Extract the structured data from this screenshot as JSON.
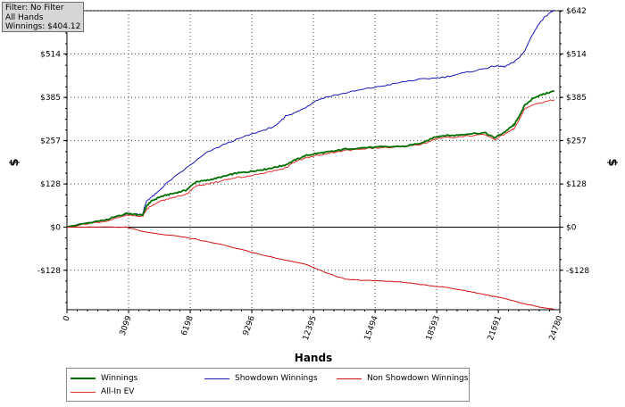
{
  "info_box": {
    "filter": "Filter: No Filter",
    "hands": "All Hands",
    "winnings": "Winnings: $404.12"
  },
  "chart_data": {
    "type": "line",
    "xlabel": "Hands",
    "ylabel_left": "$",
    "ylabel_right": "$",
    "xlim": [
      0,
      24780
    ],
    "ylim": [
      -245,
      642
    ],
    "x_ticks": [
      0,
      3099,
      6198,
      9296,
      12395,
      15494,
      18593,
      21691,
      24780
    ],
    "x_tick_labels": [
      "0",
      "3099",
      "6198",
      "9296",
      "12395",
      "15494",
      "18593",
      "21691",
      "24780"
    ],
    "y_ticks": [
      -128,
      0,
      128,
      257,
      385,
      514,
      642
    ],
    "y_tick_labels": [
      "-$128",
      "$0",
      "$128",
      "$257",
      "$385",
      "$514",
      "$642"
    ],
    "grid": true,
    "legend_position": "bottom",
    "series": [
      {
        "name": "Winnings",
        "color": "#007000",
        "x": [
          0,
          1000,
          2000,
          3000,
          3800,
          4000,
          4200,
          4600,
          5000,
          5500,
          6000,
          6500,
          7000,
          7500,
          8000,
          8500,
          9000,
          9500,
          10000,
          10500,
          11000,
          11500,
          12000,
          12500,
          13000,
          13500,
          14000,
          15000,
          16000,
          17000,
          18000,
          18500,
          19000,
          19500,
          20000,
          21000,
          21500,
          22000,
          22400,
          22500,
          22700,
          23000,
          23500,
          24000,
          24500
        ],
        "y": [
          0,
          12,
          22,
          40,
          36,
          62,
          75,
          88,
          95,
          102,
          110,
          135,
          138,
          145,
          152,
          160,
          163,
          168,
          172,
          178,
          185,
          200,
          212,
          218,
          222,
          226,
          232,
          236,
          238,
          240,
          252,
          268,
          272,
          272,
          276,
          280,
          265,
          282,
          300,
          305,
          325,
          360,
          385,
          395,
          404
        ]
      },
      {
        "name": "Showdown Winnings",
        "color": "#1818b8",
        "x": [
          0,
          1000,
          2000,
          3000,
          3800,
          4000,
          4500,
          5000,
          6000,
          7000,
          8000,
          9000,
          10000,
          10500,
          11000,
          11500,
          12000,
          12500,
          13000,
          14000,
          15000,
          16000,
          17000,
          18000,
          19000,
          20000,
          21000,
          21500,
          22000,
          22500,
          23000,
          23300,
          23800,
          24300,
          24500
        ],
        "y": [
          0,
          12,
          22,
          40,
          38,
          78,
          100,
          130,
          175,
          220,
          248,
          270,
          290,
          300,
          330,
          340,
          355,
          375,
          385,
          398,
          410,
          420,
          432,
          440,
          445,
          458,
          470,
          478,
          476,
          490,
          520,
          560,
          610,
          638,
          642
        ]
      },
      {
        "name": "Non Showdown Winnings",
        "color": "#d01010",
        "x": [
          0,
          3000,
          4000,
          6000,
          8000,
          10000,
          12000,
          13000,
          14000,
          15000,
          16000,
          17000,
          18000,
          19000,
          20000,
          21000,
          22000,
          23000,
          24000,
          24500
        ],
        "y": [
          0,
          0,
          -15,
          -30,
          -55,
          -85,
          -110,
          -135,
          -155,
          -158,
          -160,
          -164,
          -172,
          -178,
          -188,
          -200,
          -212,
          -228,
          -240,
          -244
        ]
      },
      {
        "name": "All-In EV",
        "color": "#e03030",
        "x": [
          0,
          1000,
          2000,
          3000,
          3800,
          4000,
          4200,
          4600,
          5000,
          5500,
          6000,
          6500,
          7000,
          7500,
          8000,
          8500,
          9000,
          9500,
          10000,
          10500,
          11000,
          11500,
          12000,
          12500,
          13000,
          13500,
          14000,
          15000,
          16000,
          17000,
          18000,
          18500,
          19000,
          19500,
          20000,
          21000,
          21500,
          22000,
          22400,
          22500,
          22700,
          23000,
          23500,
          24000,
          24500
        ],
        "y": [
          0,
          10,
          18,
          35,
          32,
          52,
          62,
          75,
          82,
          90,
          98,
          122,
          128,
          133,
          140,
          147,
          150,
          155,
          162,
          168,
          176,
          195,
          205,
          212,
          217,
          222,
          228,
          233,
          236,
          238,
          248,
          262,
          266,
          266,
          270,
          275,
          260,
          276,
          290,
          292,
          315,
          350,
          365,
          372,
          378
        ]
      }
    ]
  },
  "legend": {
    "items": [
      "Winnings",
      "Showdown Winnings",
      "Non Showdown Winnings",
      "All-In EV"
    ]
  }
}
